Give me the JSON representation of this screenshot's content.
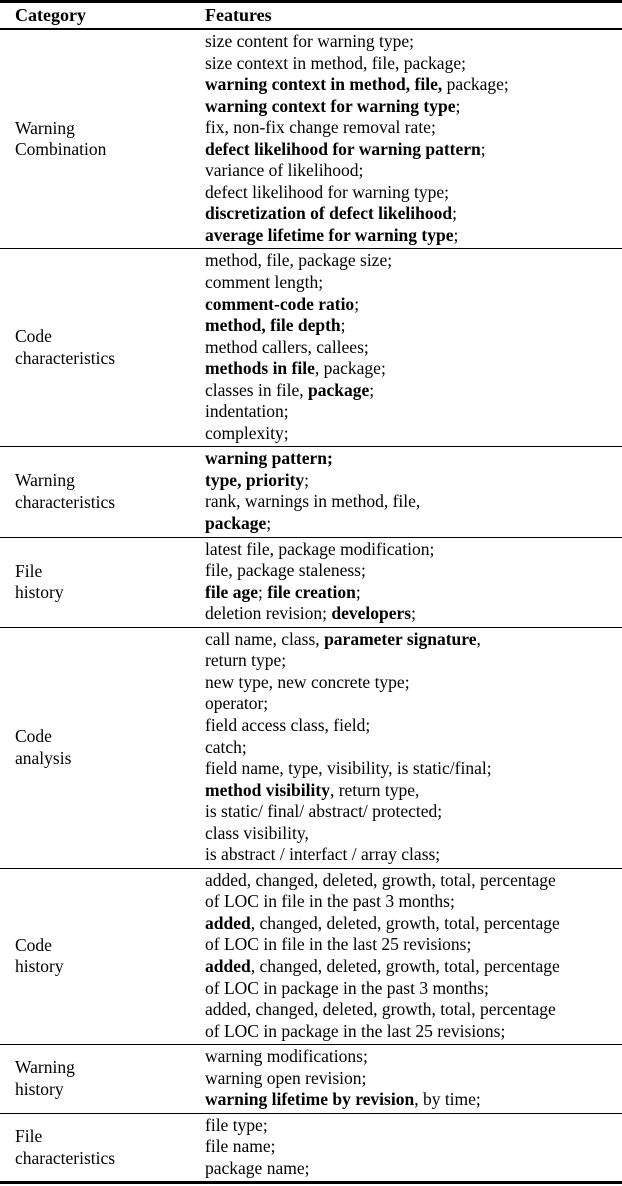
{
  "header": {
    "category": "Category",
    "features": "Features"
  },
  "sections": [
    {
      "category_lines": [
        "Warning",
        "Combination"
      ],
      "features": [
        "size content for warning type;",
        "size context in method, file, package;",
        [
          {
            "text": "warning context in method, file,",
            "bold": true
          },
          {
            "text": " package;",
            "bold": false
          }
        ],
        [
          {
            "text": "warning context for warning type",
            "bold": true
          },
          {
            "text": ";",
            "bold": false
          }
        ],
        "fix, non-fix change removal rate;",
        [
          {
            "text": "defect likelihood for warning pattern",
            "bold": true
          },
          {
            "text": ";",
            "bold": false
          }
        ],
        "variance of likelihood;",
        "defect likelihood for warning type;",
        [
          {
            "text": "discretization of defect likelihood",
            "bold": true
          },
          {
            "text": ";",
            "bold": false
          }
        ],
        [
          {
            "text": "average lifetime for warning type",
            "bold": true
          },
          {
            "text": ";",
            "bold": false
          }
        ]
      ]
    },
    {
      "category_lines": [
        "Code",
        "characteristics"
      ],
      "features": [
        "method, file, package size;",
        "comment length;",
        [
          {
            "text": "comment-code ratio",
            "bold": true
          },
          {
            "text": ";",
            "bold": false
          }
        ],
        [
          {
            "text": "method, file depth",
            "bold": true
          },
          {
            "text": ";",
            "bold": false
          }
        ],
        "method callers, callees;",
        [
          {
            "text": "methods in file",
            "bold": true
          },
          {
            "text": ", package;",
            "bold": false
          }
        ],
        [
          {
            "text": "classes in file, ",
            "bold": false
          },
          {
            "text": "package",
            "bold": true
          },
          {
            "text": ";",
            "bold": false
          }
        ],
        "indentation;",
        "complexity;"
      ]
    },
    {
      "category_lines": [
        "Warning",
        "characteristics"
      ],
      "features": [
        [
          {
            "text": "warning pattern;",
            "bold": true
          }
        ],
        [
          {
            "text": "type, priority",
            "bold": true
          },
          {
            "text": ";",
            "bold": false
          }
        ],
        "rank, warnings in method, file,",
        [
          {
            "text": "package",
            "bold": true
          },
          {
            "text": ";",
            "bold": false
          }
        ]
      ]
    },
    {
      "category_lines": [
        "File",
        "history"
      ],
      "features": [
        "latest file, package modification;",
        "file, package staleness;",
        [
          {
            "text": "file age",
            "bold": true
          },
          {
            "text": "; ",
            "bold": false
          },
          {
            "text": "file creation",
            "bold": true
          },
          {
            "text": ";",
            "bold": false
          }
        ],
        [
          {
            "text": "deletion revision; ",
            "bold": false
          },
          {
            "text": "developers",
            "bold": true
          },
          {
            "text": ";",
            "bold": false
          }
        ]
      ]
    },
    {
      "category_lines": [
        "Code",
        "analysis"
      ],
      "features": [
        [
          {
            "text": "call name, class, ",
            "bold": false
          },
          {
            "text": "parameter signature",
            "bold": true
          },
          {
            "text": ",",
            "bold": false
          }
        ],
        "return type;",
        "new type, new concrete type;",
        "operator;",
        "field access class, field;",
        "catch;",
        "field name, type, visibility, is static/final;",
        [
          {
            "text": "method visibility",
            "bold": true
          },
          {
            "text": ", return type,",
            "bold": false
          }
        ],
        "is static/ final/ abstract/ protected;",
        "class visibility,",
        "is abstract / interfact / array class;"
      ]
    },
    {
      "category_lines": [
        "Code",
        "history"
      ],
      "features": [
        "added, changed, deleted, growth, total, percentage",
        "of LOC in file in the past 3 months;",
        [
          {
            "text": "added",
            "bold": true
          },
          {
            "text": ", changed, deleted, growth, total, percentage",
            "bold": false
          }
        ],
        "of LOC in file in the last 25 revisions;",
        [
          {
            "text": "added",
            "bold": true
          },
          {
            "text": ", changed, deleted, growth, total, percentage",
            "bold": false
          }
        ],
        "of LOC in package in the past 3 months;",
        "added, changed, deleted, growth, total, percentage",
        "of LOC in package in the last 25 revisions;"
      ]
    },
    {
      "category_lines": [
        "Warning",
        "history"
      ],
      "features": [
        "warning modifications;",
        "warning open revision;",
        [
          {
            "text": "warning lifetime by revision",
            "bold": true
          },
          {
            "text": ", by time;",
            "bold": false
          }
        ]
      ]
    },
    {
      "category_lines": [
        "File",
        "characteristics"
      ],
      "features": [
        "file type;",
        "file name;",
        "package name;"
      ]
    }
  ]
}
